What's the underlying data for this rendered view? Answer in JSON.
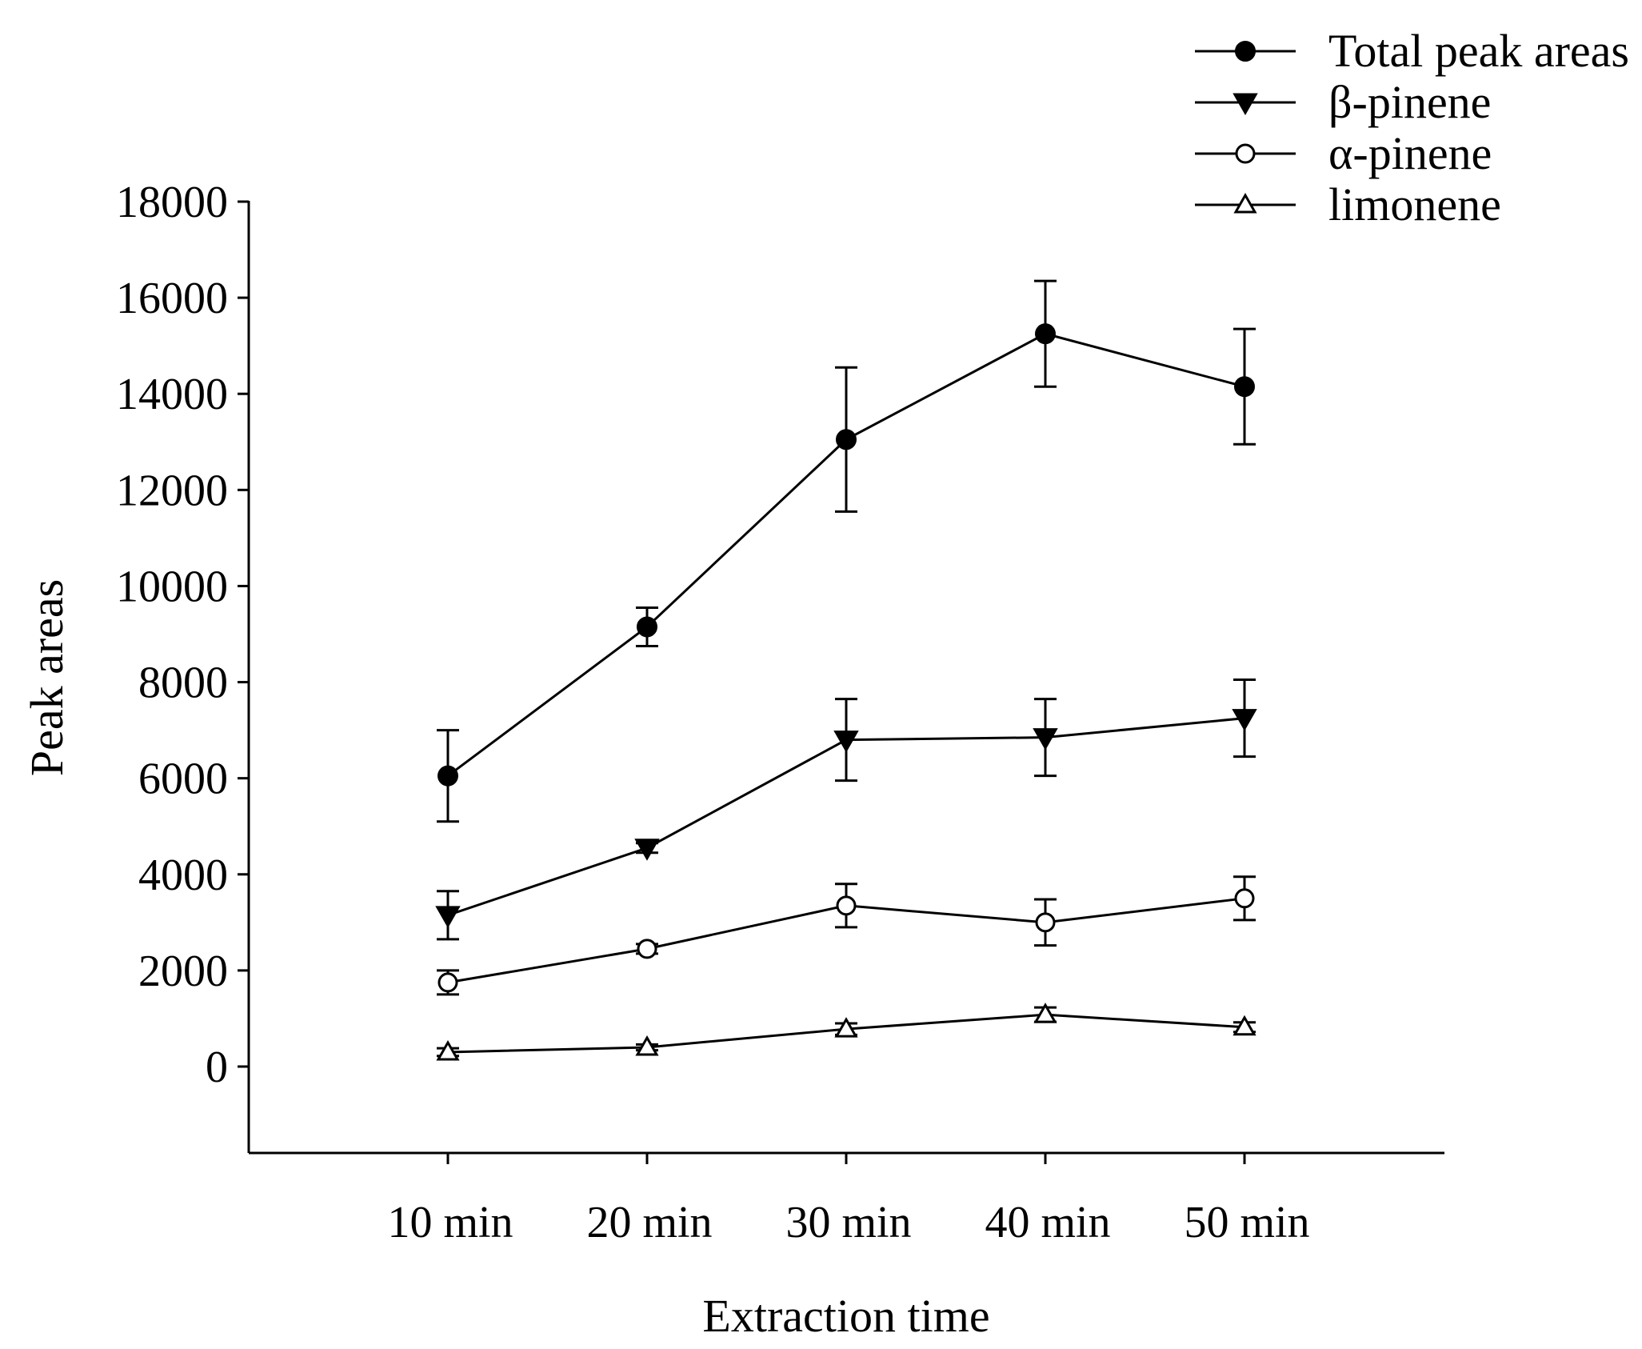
{
  "chart_data": {
    "type": "line",
    "title": "",
    "xlabel": "Extraction time",
    "ylabel": "Peak areas",
    "categories": [
      "10 min",
      "20 min",
      "30 min",
      "40 min",
      "50 min"
    ],
    "ylim": [
      -1800,
      18000
    ],
    "yticks": [
      0,
      2000,
      4000,
      6000,
      8000,
      10000,
      12000,
      14000,
      16000,
      18000
    ],
    "grid": false,
    "legend_position": "top-right",
    "series": [
      {
        "name": "Total peak areas",
        "marker": "filled-circle",
        "values": [
          6050,
          9150,
          13050,
          15250,
          14150
        ],
        "errors": [
          950,
          400,
          1500,
          1100,
          1200
        ]
      },
      {
        "name": "β-pinene",
        "marker": "filled-triangle-down",
        "values": [
          3150,
          4550,
          6800,
          6850,
          7250
        ],
        "errors": [
          500,
          100,
          850,
          800,
          800
        ]
      },
      {
        "name": "α-pinene",
        "marker": "open-circle",
        "values": [
          1750,
          2450,
          3350,
          3000,
          3500
        ],
        "errors": [
          250,
          100,
          450,
          480,
          450
        ]
      },
      {
        "name": "limonene",
        "marker": "open-triangle-up",
        "values": [
          300,
          400,
          780,
          1080,
          820
        ],
        "errors": [
          80,
          60,
          120,
          150,
          100
        ]
      }
    ]
  }
}
